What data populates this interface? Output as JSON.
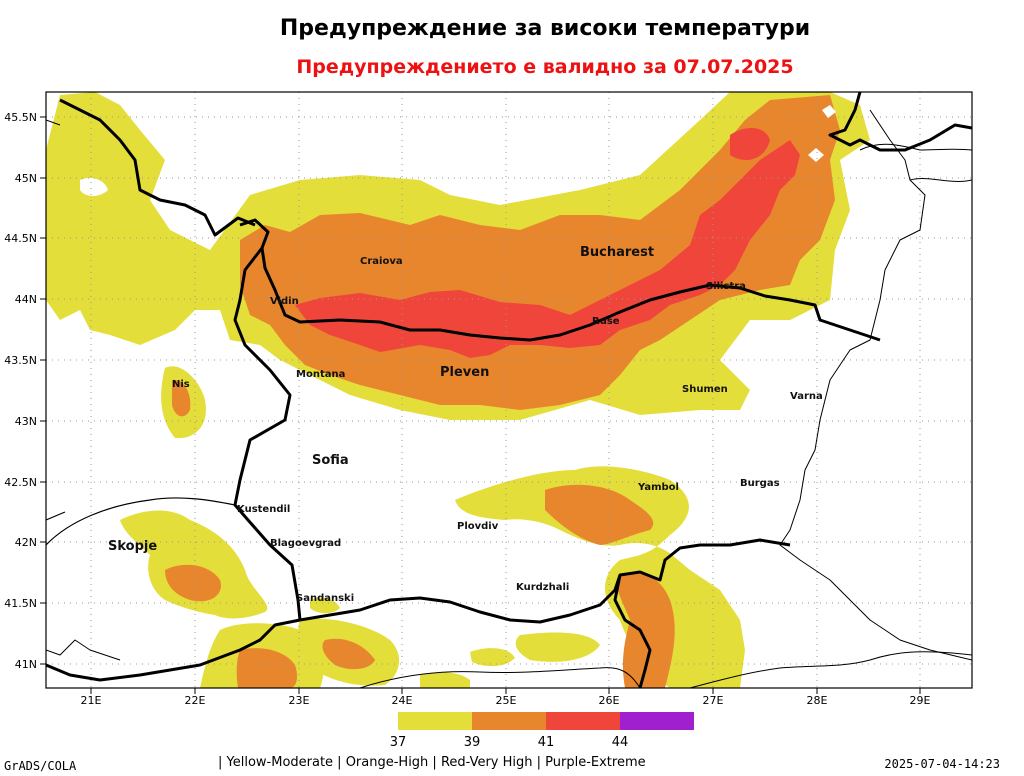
{
  "title": "Предупреждение за високи температури",
  "subtitle": "Предупреждението е валидно за 07.07.2025",
  "map": {
    "lat_ticks": [
      "45.5N",
      "45N",
      "44.5N",
      "44N",
      "43.5N",
      "43N",
      "42.5N",
      "42N",
      "41.5N",
      "41N"
    ],
    "lon_ticks": [
      "21E",
      "22E",
      "23E",
      "24E",
      "25E",
      "26E",
      "27E",
      "28E",
      "29E"
    ],
    "cities": {
      "bucharest": "Bucharest",
      "craiova": "Craiova",
      "vidin": "Vidin",
      "silistra": "Silistra",
      "ruse": "Ruse",
      "montana": "Montana",
      "pleven": "Pleven",
      "shumen": "Shumen",
      "varna": "Varna",
      "nis": "Nis",
      "sofia": "Sofia",
      "yambol": "Yambol",
      "burgas": "Burgas",
      "kustendil": "Kustendil",
      "skopje": "Skopje",
      "blagoevgrad": "Blagoevgrad",
      "plovdiv": "Plovdiv",
      "kurdzhali": "Kurdzhali",
      "sandanski": "Sandanski"
    }
  },
  "legend": {
    "colors": [
      "#e4de3a",
      "#e8862e",
      "#f0453a",
      "#a020d0"
    ],
    "labels": [
      "37",
      "39",
      "41",
      "44"
    ],
    "description": "| Yellow-Moderate | Orange-High | Red-Very High | Purple-Extreme"
  },
  "footer": {
    "left": "GrADS/COLA",
    "right": "2025-07-04-14:23"
  }
}
